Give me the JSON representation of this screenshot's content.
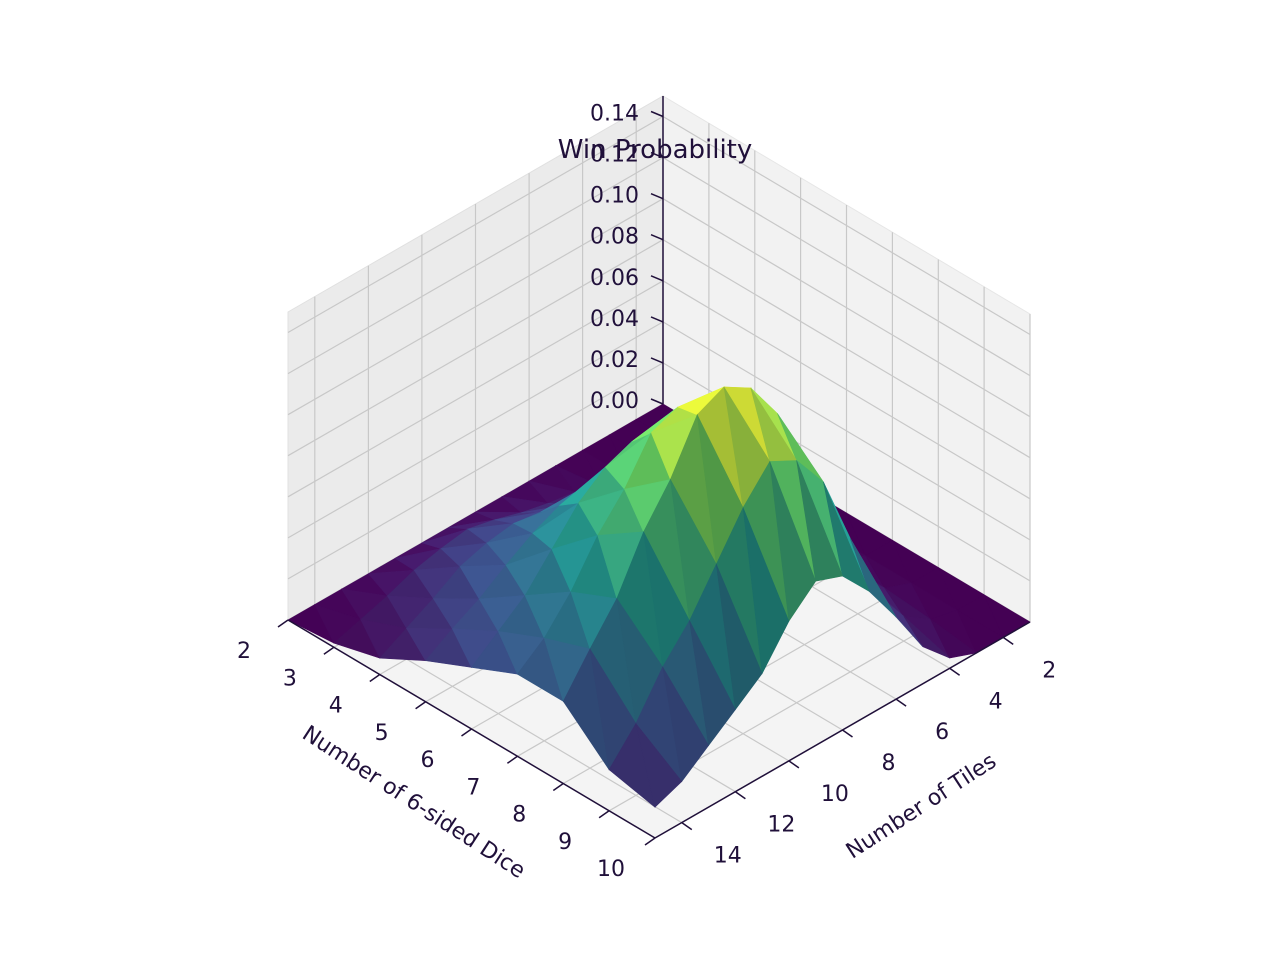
{
  "chart_data": {
    "type": "surface3d",
    "title": "Win Probability",
    "x_axis": {
      "label": "Number of 6-sided Dice",
      "ticks": [
        2,
        3,
        4,
        5,
        6,
        7,
        8,
        9,
        10
      ],
      "range": [
        2,
        10
      ]
    },
    "y_axis": {
      "label": "Number of Tiles",
      "ticks": [
        2,
        4,
        6,
        8,
        10,
        12,
        14
      ],
      "range": [
        1,
        15
      ]
    },
    "z_axis": {
      "label": "",
      "ticks": [
        "0.00",
        "0.02",
        "0.04",
        "0.06",
        "0.08",
        "0.10",
        "0.12",
        "0.14"
      ],
      "range": [
        0,
        0.15
      ]
    },
    "colormap": [
      "#440154",
      "#3b528b",
      "#21918c",
      "#5ec962",
      "#fde725"
    ],
    "grid": true,
    "dice": [
      2,
      3,
      4,
      5,
      6,
      7,
      8,
      9,
      10
    ],
    "tiles": [
      1,
      2,
      3,
      4,
      5,
      6,
      7,
      8,
      9,
      10,
      11,
      12,
      13,
      14,
      15
    ],
    "z": [
      [
        0,
        0,
        0,
        0,
        0,
        0,
        0,
        0,
        0,
        0,
        0,
        0,
        0,
        0,
        0
      ],
      [
        0,
        0,
        0,
        0,
        0.003,
        0.008,
        0.01,
        0.013,
        0.017,
        0.02,
        0.018,
        0.015,
        0.01,
        0.006,
        0.002
      ],
      [
        0,
        0,
        0,
        0.002,
        0.006,
        0.012,
        0.02,
        0.03,
        0.034,
        0.036,
        0.034,
        0.03,
        0.022,
        0.015,
        0.008
      ],
      [
        0,
        0,
        0.003,
        0.008,
        0.015,
        0.03,
        0.045,
        0.055,
        0.06,
        0.058,
        0.052,
        0.044,
        0.035,
        0.028,
        0.02
      ],
      [
        0,
        0,
        0.005,
        0.015,
        0.03,
        0.05,
        0.07,
        0.085,
        0.095,
        0.09,
        0.08,
        0.065,
        0.05,
        0.04,
        0.03
      ],
      [
        0,
        0,
        0.006,
        0.02,
        0.04,
        0.07,
        0.1,
        0.115,
        0.125,
        0.12,
        0.1,
        0.085,
        0.065,
        0.05,
        0.04
      ],
      [
        0,
        0,
        0.005,
        0.018,
        0.04,
        0.08,
        0.12,
        0.14,
        0.148,
        0.142,
        0.118,
        0.1,
        0.075,
        0.058,
        0.04
      ],
      [
        0,
        0,
        0.003,
        0.012,
        0.03,
        0.065,
        0.1,
        0.118,
        0.125,
        0.11,
        0.09,
        0.07,
        0.055,
        0.035,
        0.02
      ],
      [
        0,
        0,
        0,
        0.005,
        0.018,
        0.04,
        0.06,
        0.075,
        0.08,
        0.068,
        0.05,
        0.04,
        0.03,
        0.02,
        0.015
      ]
    ]
  }
}
